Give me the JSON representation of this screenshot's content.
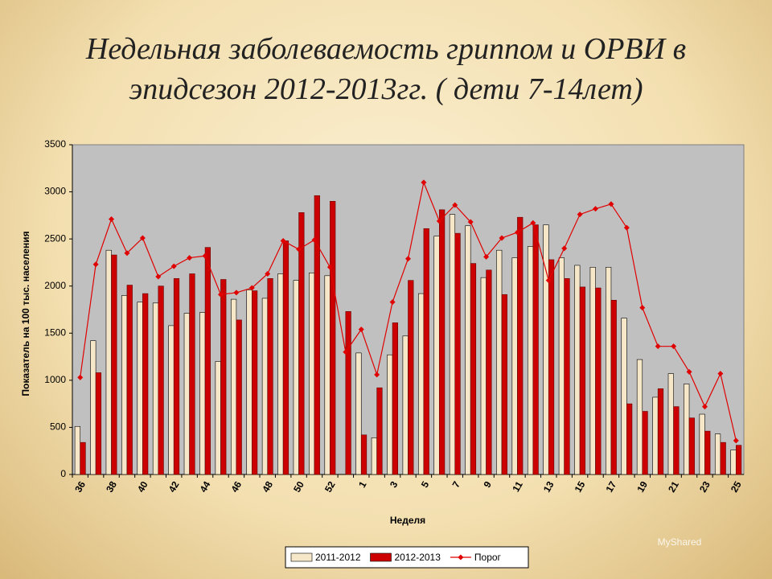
{
  "chart_data": {
    "type": "bar_line",
    "title": "Недельная заболеваемость гриппом и ОРВИ в эпидсезон 2012-2013гг. ( дети 7-14лет)",
    "xlabel": "Неделя",
    "ylabel": "Показатель на 100 тыс. населения",
    "watermark": "MyShared",
    "categories": [
      "36",
      null,
      "38",
      null,
      "40",
      null,
      "42",
      null,
      "44",
      null,
      "46",
      null,
      "48",
      null,
      "50",
      null,
      "52",
      null,
      "1",
      null,
      "3",
      null,
      "5",
      null,
      "7",
      null,
      "9",
      null,
      "11",
      null,
      "13",
      null,
      "15",
      null,
      "17",
      null,
      "19",
      null,
      "21",
      null,
      "23",
      null,
      "25"
    ],
    "series": [
      {
        "name": "2011-2012",
        "kind": "bar",
        "color": "#f6e7c9",
        "values": [
          510,
          1420,
          2380,
          1900,
          1830,
          1820,
          1580,
          1710,
          1720,
          1200,
          1860,
          1960,
          1870,
          2130,
          2060,
          2140,
          2110,
          null,
          1290,
          390,
          1270,
          1470,
          1920,
          2530,
          2760,
          2640,
          2090,
          2380,
          2300,
          2420,
          2650,
          2300,
          2220,
          2200,
          2200,
          1660,
          1220,
          820,
          1070,
          960,
          640,
          430,
          260
        ]
      },
      {
        "name": "2012-2013",
        "kind": "bar",
        "color": "#cc0000",
        "values": [
          340,
          1080,
          2330,
          2010,
          1920,
          2000,
          2080,
          2130,
          2410,
          2070,
          1640,
          1950,
          2080,
          2480,
          2780,
          2960,
          2900,
          1730,
          420,
          920,
          1610,
          2060,
          2610,
          2810,
          2560,
          2240,
          2170,
          1910,
          2730,
          2650,
          2280,
          2080,
          1990,
          1980,
          1850,
          750,
          670,
          910,
          720,
          600,
          460,
          340,
          310
        ]
      },
      {
        "name": "Порог",
        "kind": "line",
        "color": "#e00000",
        "values": [
          1030,
          2230,
          2710,
          2350,
          2510,
          2100,
          2210,
          2300,
          2320,
          1910,
          1930,
          1980,
          2130,
          2480,
          2390,
          2490,
          2200,
          1300,
          1540,
          1060,
          1830,
          2290,
          3100,
          2690,
          2860,
          2680,
          2310,
          2510,
          2570,
          2670,
          2060,
          2400,
          2760,
          2820,
          2870,
          2620,
          1770,
          1360,
          1360,
          1090,
          720,
          1070,
          360
        ]
      }
    ],
    "ylim": [
      0,
      3500
    ],
    "yticks": [
      0,
      500,
      1000,
      1500,
      2000,
      2500,
      3000,
      3500
    ],
    "grid": false
  }
}
